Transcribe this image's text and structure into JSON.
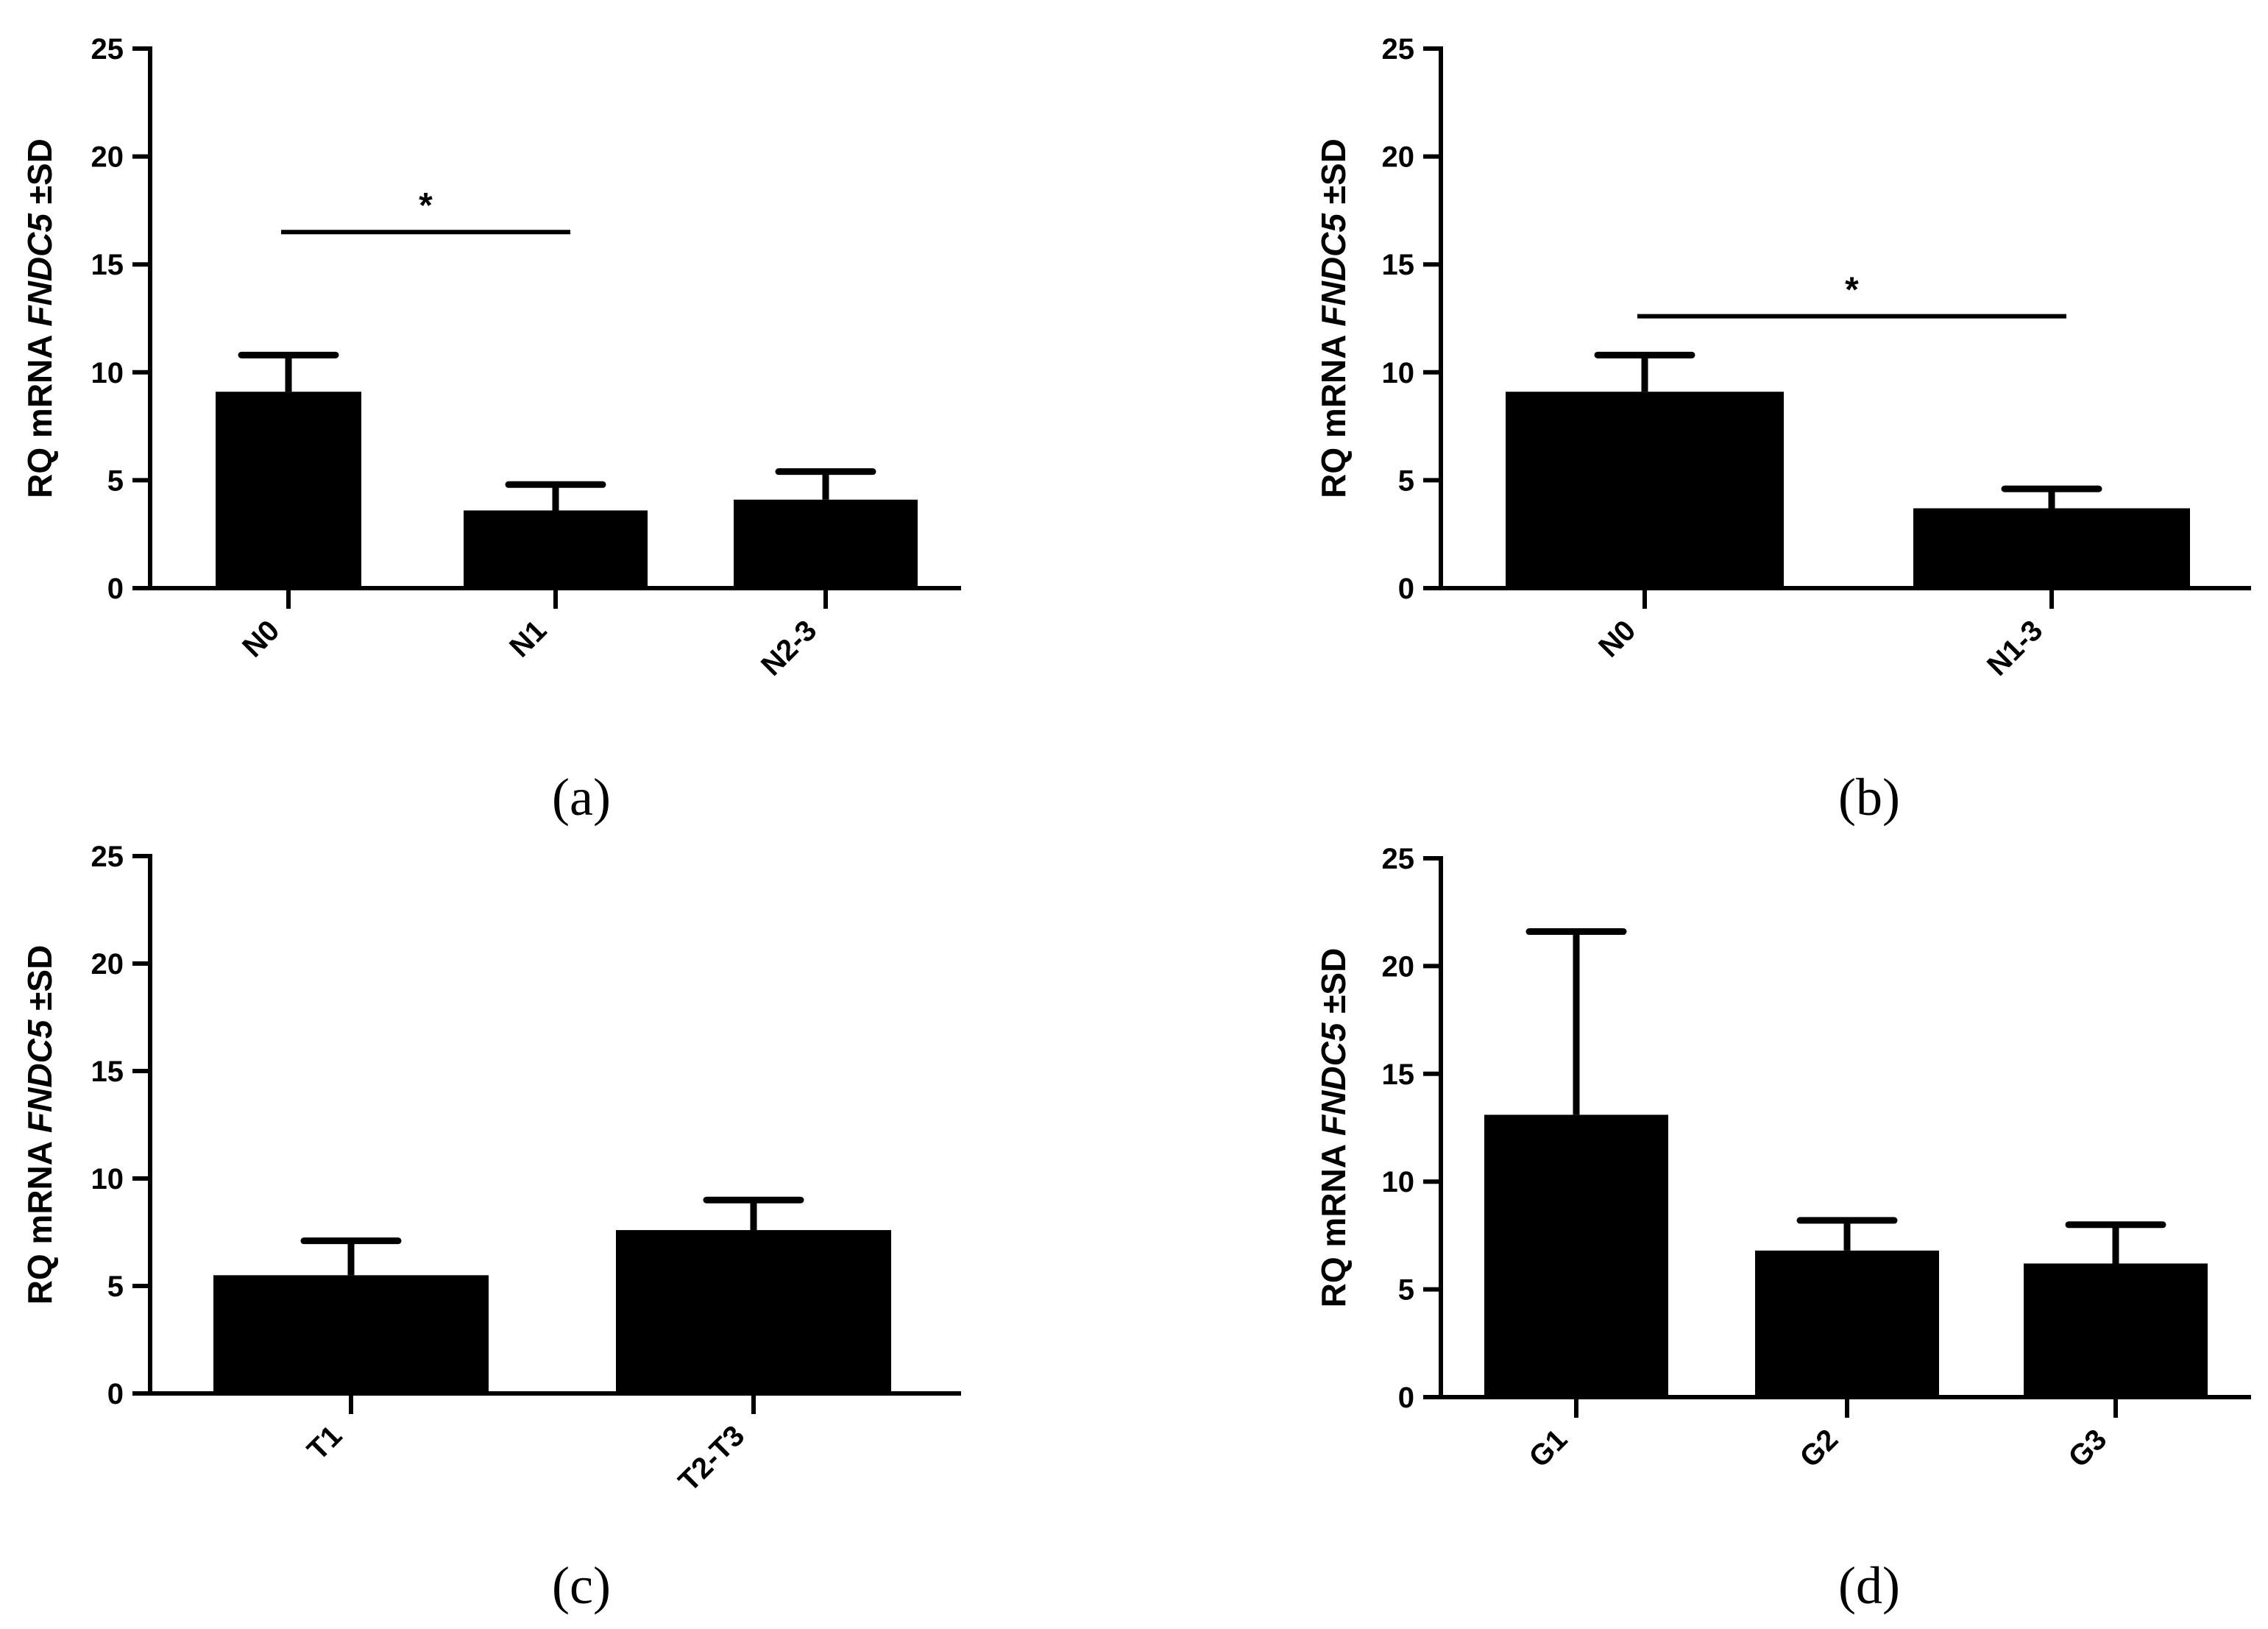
{
  "chart_data": [
    {
      "type": "bar",
      "panel_label": "(a)",
      "ylabel_parts": [
        "RQ mRNA ",
        "FNDC5",
        " ±SD"
      ],
      "ylim": [
        0,
        25
      ],
      "yticks": [
        "0",
        "5",
        "10",
        "15",
        "20",
        "25"
      ],
      "categories": [
        "N0",
        "N1",
        "N2-3"
      ],
      "values": [
        9.1,
        3.6,
        4.1
      ],
      "error_upper": [
        1.7,
        1.2,
        1.3
      ],
      "significance": [
        {
          "from": 0,
          "to": 1,
          "label": "*",
          "y": 16.5
        }
      ]
    },
    {
      "type": "bar",
      "panel_label": "(b)",
      "ylabel_parts": [
        "RQ mRNA ",
        "FNDC5",
        " ±SD"
      ],
      "ylim": [
        0,
        25
      ],
      "yticks": [
        "0",
        "5",
        "10",
        "15",
        "20",
        "25"
      ],
      "categories": [
        "N0",
        "N1-3"
      ],
      "values": [
        9.1,
        3.7
      ],
      "error_upper": [
        1.7,
        0.9
      ],
      "significance": [
        {
          "from": 0,
          "to": 1,
          "label": "*",
          "y": 12.6
        }
      ]
    },
    {
      "type": "bar",
      "panel_label": "(c)",
      "ylabel_parts": [
        "RQ mRNA ",
        "FNDC5",
        " ±SD"
      ],
      "ylim": [
        0,
        25
      ],
      "yticks": [
        "0",
        "5",
        "10",
        "15",
        "20",
        "25"
      ],
      "categories": [
        "T1",
        "T2-T3"
      ],
      "values": [
        5.5,
        7.6
      ],
      "error_upper": [
        1.6,
        1.4
      ],
      "significance": []
    },
    {
      "type": "bar",
      "panel_label": "(d)",
      "ylabel_parts": [
        "RQ mRNA ",
        "FNDC5",
        " ±SD"
      ],
      "ylim": [
        0,
        25
      ],
      "yticks": [
        "0",
        "5",
        "10",
        "15",
        "20",
        "25"
      ],
      "categories": [
        "G1",
        "G2",
        "G3"
      ],
      "values": [
        13.1,
        6.8,
        6.2
      ],
      "error_upper": [
        8.5,
        1.4,
        1.8
      ],
      "significance": []
    }
  ],
  "colors": {
    "bar": "#000000",
    "axis": "#000000",
    "background": "#ffffff"
  }
}
